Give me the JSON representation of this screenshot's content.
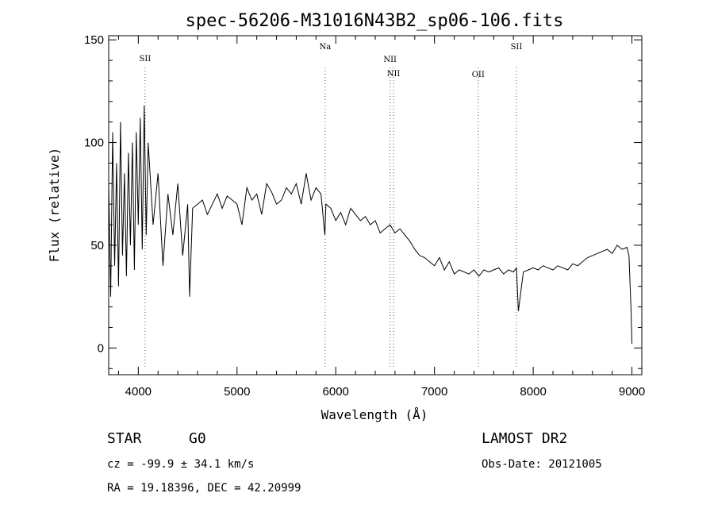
{
  "chart_data": {
    "type": "line",
    "title": "spec-56206-M31016N43B2_sp06-106.fits",
    "xlabel": "Wavelength (Å)",
    "ylabel": "Flux (relative)",
    "xlim": [
      3700,
      9100
    ],
    "ylim": [
      -13,
      152
    ],
    "xticks": [
      4000,
      5000,
      6000,
      7000,
      8000,
      9000
    ],
    "yticks": [
      0,
      50,
      100,
      150
    ],
    "xtick_labels": [
      "4000",
      "5000",
      "6000",
      "7000",
      "8000",
      "9000"
    ],
    "ytick_labels": [
      "0",
      "50",
      "100",
      "150"
    ],
    "grid": false,
    "series": [
      {
        "x": [
          3700,
          3720,
          3740,
          3760,
          3780,
          3800,
          3820,
          3840,
          3860,
          3880,
          3900,
          3920,
          3940,
          3960,
          3980,
          4000,
          4020,
          4040,
          4060,
          4080,
          4100,
          4150,
          4200,
          4250,
          4300,
          4350,
          4400,
          4450,
          4500,
          4520,
          4550,
          4600,
          4650,
          4700,
          4750,
          4800,
          4850,
          4900,
          4950,
          5000,
          5050,
          5100,
          5150,
          5200,
          5250,
          5300,
          5350,
          5400,
          5450,
          5500,
          5550,
          5600,
          5650,
          5700,
          5750,
          5800,
          5850,
          5890,
          5900,
          5950,
          6000,
          6050,
          6100,
          6150,
          6200,
          6250,
          6300,
          6350,
          6400,
          6450,
          6500,
          6550,
          6600,
          6650,
          6700,
          6750,
          6800,
          6850,
          6900,
          6950,
          7000,
          7050,
          7100,
          7150,
          7200,
          7250,
          7300,
          7350,
          7400,
          7450,
          7500,
          7550,
          7600,
          7650,
          7700,
          7750,
          7800,
          7830,
          7850,
          7900,
          7950,
          8000,
          8050,
          8100,
          8150,
          8200,
          8250,
          8300,
          8350,
          8400,
          8450,
          8500,
          8550,
          8600,
          8650,
          8700,
          8750,
          8800,
          8850,
          8900,
          8950,
          8970,
          8990,
          9000
        ],
        "y": [
          80,
          25,
          105,
          40,
          90,
          30,
          110,
          45,
          85,
          35,
          95,
          50,
          100,
          38,
          105,
          60,
          112,
          48,
          118,
          55,
          100,
          60,
          85,
          40,
          75,
          55,
          80,
          45,
          70,
          25,
          68,
          70,
          72,
          65,
          70,
          75,
          68,
          74,
          72,
          70,
          60,
          78,
          72,
          75,
          65,
          80,
          76,
          70,
          72,
          78,
          75,
          80,
          70,
          85,
          72,
          78,
          75,
          55,
          70,
          68,
          62,
          66,
          60,
          68,
          65,
          62,
          64,
          60,
          62,
          56,
          58,
          60,
          56,
          58,
          55,
          52,
          48,
          45,
          44,
          42,
          40,
          44,
          38,
          42,
          36,
          38,
          37,
          36,
          38,
          35,
          38,
          37,
          38,
          39,
          36,
          38,
          37,
          39,
          18,
          37,
          38,
          39,
          38,
          40,
          39,
          38,
          40,
          39,
          38,
          41,
          40,
          42,
          44,
          45,
          46,
          47,
          48,
          46,
          50,
          48,
          49,
          45,
          20,
          2
        ]
      }
    ],
    "line_labels": [
      {
        "label": "SII",
        "wavelength": 4069
      },
      {
        "label": "Na",
        "wavelength": 5893
      },
      {
        "label": "NII",
        "wavelength": 6550
      },
      {
        "label": "NII",
        "wavelength": 6585
      },
      {
        "label": "OII",
        "wavelength": 7443
      },
      {
        "label": "SII",
        "wavelength": 7830
      }
    ]
  },
  "info": {
    "class": "STAR",
    "subclass": "G0",
    "redshift": "cz = -99.9 ± 34.1 km/s",
    "coords": "RA =  19.18396, DEC =  42.20999",
    "survey": "LAMOST DR2",
    "obs_date": "Obs-Date: 20121005"
  }
}
